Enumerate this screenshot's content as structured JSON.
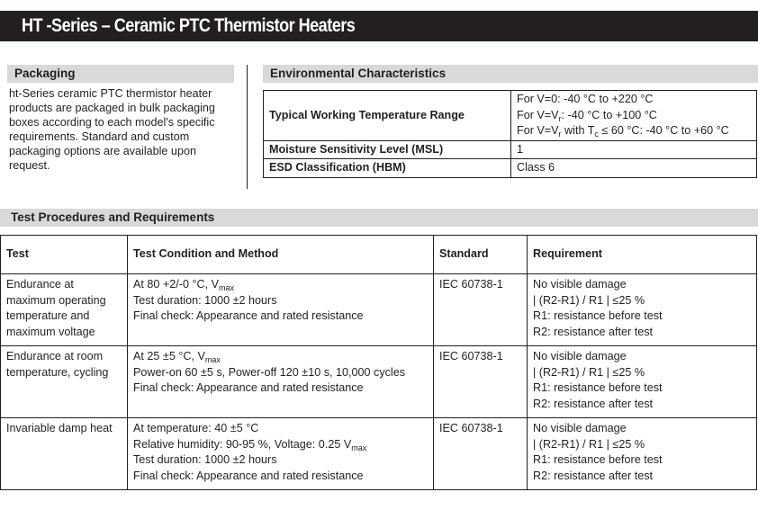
{
  "title": "HT -Series – Ceramic PTC Thermistor Heaters",
  "packaging": {
    "heading": "Packaging",
    "text": "ht-Series ceramic PTC thermistor heater products are packaged in bulk packaging boxes according to each model's specific requirements. Standard and custom packaging options are available upon request."
  },
  "environmental": {
    "heading": "Environmental Characteristics",
    "rows": [
      {
        "key": "Typical Working Temperature Range",
        "value": [
          [
            {
              "t": "For V=0: -40 °C to +220 °C"
            }
          ],
          [
            {
              "t": "For V=V"
            },
            {
              "s": "r"
            },
            {
              "t": ": -40 °C to +100 °C"
            }
          ],
          [
            {
              "t": "For V=V"
            },
            {
              "s": "r"
            },
            {
              "t": " with T"
            },
            {
              "s": "c"
            },
            {
              "t": " ≤ 60 °C: -40 °C to +60 °C"
            }
          ]
        ]
      },
      {
        "key": "Moisture Sensitivity Level (MSL)",
        "value": [
          [
            {
              "t": "1"
            }
          ]
        ]
      },
      {
        "key": "ESD Classification (HBM)",
        "value": [
          [
            {
              "t": "Class 6"
            }
          ]
        ]
      }
    ]
  },
  "tests": {
    "heading": "Test Procedures and Requirements",
    "columns": [
      "Test",
      "Test Condition and Method",
      "Standard",
      "Requirement"
    ],
    "rows": [
      {
        "test": "Endurance at maximum operating temperature and maximum voltage",
        "condition": [
          [
            {
              "t": "At 80 +2/-0 °C, V"
            },
            {
              "s": "max"
            }
          ],
          [
            {
              "t": "Test duration: 1000 ±2 hours"
            }
          ],
          [
            {
              "t": "Final check: Appearance and rated resistance"
            }
          ]
        ],
        "standard": "IEC 60738-1",
        "requirement": [
          "No visible damage",
          "| (R2-R1) / R1 | ≤25 %",
          "R1: resistance before test",
          "R2: resistance after test"
        ]
      },
      {
        "test": "Endurance at room temperature, cycling",
        "condition": [
          [
            {
              "t": "At 25 ±5 °C, V"
            },
            {
              "s": "max"
            }
          ],
          [
            {
              "t": "Power-on 60 ±5 s, Power-off 120 ±10 s, 10,000 cycles"
            }
          ],
          [
            {
              "t": "Final check: Appearance and rated resistance"
            }
          ]
        ],
        "standard": "IEC 60738-1",
        "requirement": [
          "No visible damage",
          "| (R2-R1) / R1 | ≤25 %",
          "R1: resistance before test",
          "R2: resistance after test"
        ]
      },
      {
        "test": "Invariable damp heat",
        "condition": [
          [
            {
              "t": "At temperature: 40 ±5 °C"
            }
          ],
          [
            {
              "t": "Relative humidity: 90-95 %, Voltage: 0.25 V"
            },
            {
              "s": "max"
            }
          ],
          [
            {
              "t": "Test duration: 1000 ±2 hours"
            }
          ],
          [
            {
              "t": "Final check: Appearance and rated resistance"
            }
          ]
        ],
        "standard": "IEC 60738-1",
        "requirement": [
          "No visible damage",
          "| (R2-R1) / R1 | ≤25 %",
          "R1: resistance before test",
          "R2: resistance after test"
        ]
      }
    ]
  }
}
